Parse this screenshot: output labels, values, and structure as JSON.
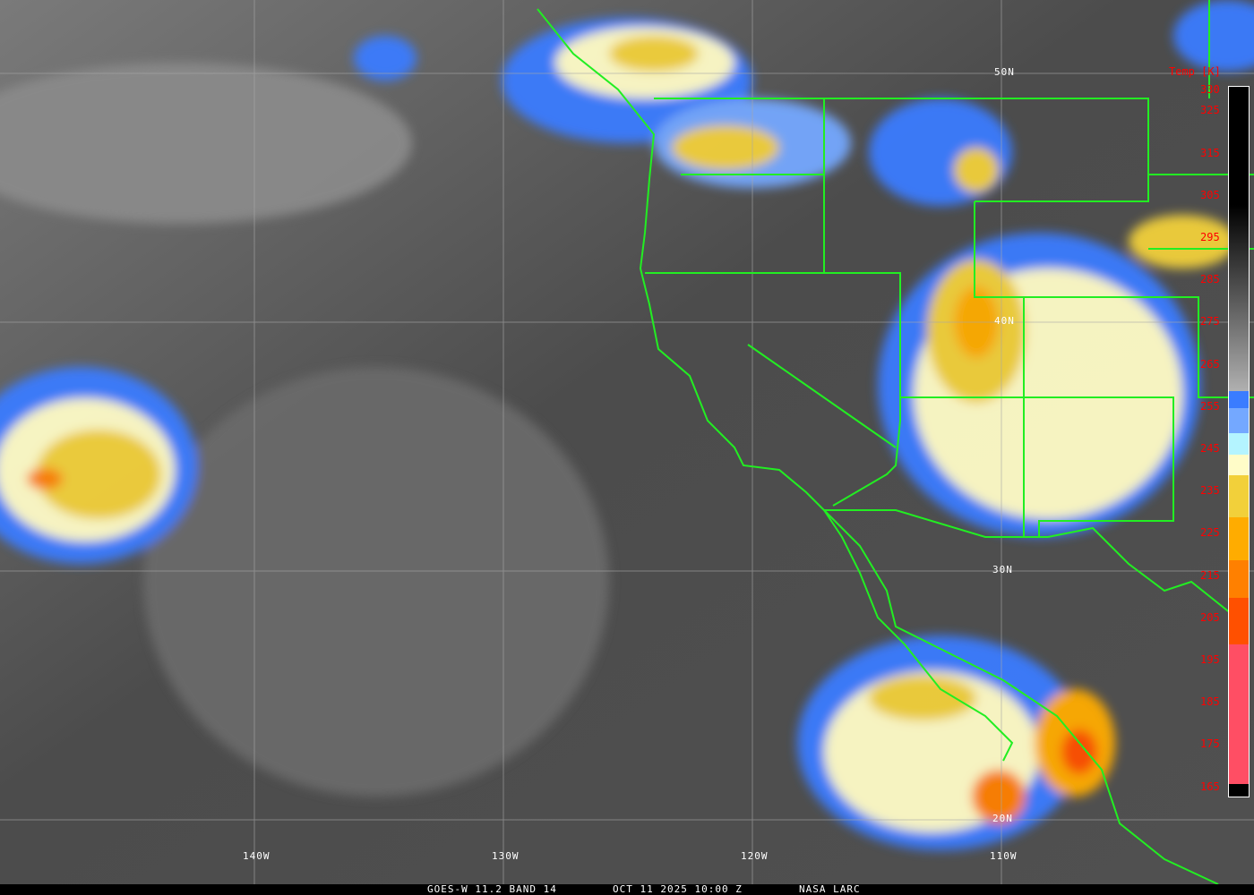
{
  "caption": {
    "satellite": "GOES-W 11.2 BAND 14",
    "datetime": "OCT 11 2025 10:00 Z",
    "source": "NASA LARC"
  },
  "grid": {
    "latitudes": [
      "50N",
      "40N",
      "30N",
      "20N"
    ],
    "longitudes": [
      "140W",
      "130W",
      "120W",
      "110W"
    ]
  },
  "colorbar": {
    "title": "Temp [K]",
    "ticks": [
      "330",
      "325",
      "315",
      "305",
      "295",
      "285",
      "275",
      "265",
      "255",
      "245",
      "235",
      "225",
      "215",
      "205",
      "195",
      "185",
      "175",
      "165"
    ],
    "range_k": [
      163,
      331
    ],
    "stops": [
      {
        "from": 331,
        "to": 303,
        "color": "#000000"
      },
      {
        "from": 303,
        "to": 259,
        "color": "gradient-black-to-lightgray"
      },
      {
        "from": 259,
        "to": 255,
        "color": "#3a7cff"
      },
      {
        "from": 255,
        "to": 249,
        "color": "#74a8ff"
      },
      {
        "from": 249,
        "to": 244,
        "color": "#b4f4ff"
      },
      {
        "from": 244,
        "to": 239,
        "color": "#fffcc8"
      },
      {
        "from": 239,
        "to": 229,
        "color": "#f2d03a"
      },
      {
        "from": 229,
        "to": 219,
        "color": "#ffac00"
      },
      {
        "from": 219,
        "to": 210,
        "color": "#ff8000"
      },
      {
        "from": 210,
        "to": 199,
        "color": "#ff5000"
      },
      {
        "from": 199,
        "to": 166,
        "color": "#ff4e64"
      },
      {
        "from": 166,
        "to": 163,
        "color": "#000000"
      }
    ]
  },
  "overlay_color": "#22ee22"
}
